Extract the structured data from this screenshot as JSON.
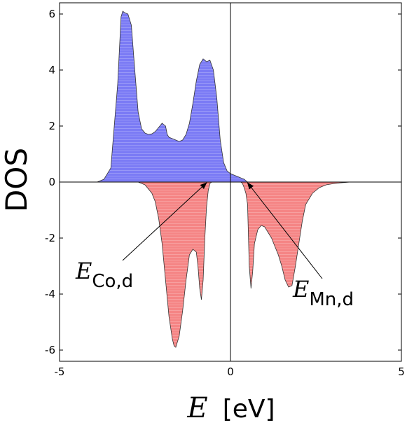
{
  "chart_data": {
    "type": "area",
    "xlabel_symbol": "E",
    "xlabel_unit": "[eV]",
    "ylabel": "DOS",
    "xlim": [
      -5,
      5
    ],
    "ylim": [
      -6.4,
      6.4
    ],
    "xticks": [
      -5,
      0,
      5
    ],
    "yticks": [
      -6,
      -4,
      -2,
      0,
      2,
      4,
      6
    ],
    "grid": false,
    "series": [
      {
        "fill_color": "#7b7bf5",
        "x": [
          -3.9,
          -3.7,
          -3.5,
          -3.3,
          -3.2,
          -3.15,
          -3.1,
          -3.0,
          -2.9,
          -2.8,
          -2.7,
          -2.6,
          -2.5,
          -2.4,
          -2.3,
          -2.2,
          -2.1,
          -2.0,
          -1.95,
          -1.9,
          -1.85,
          -1.8,
          -1.7,
          -1.6,
          -1.5,
          -1.4,
          -1.3,
          -1.2,
          -1.1,
          -1.0,
          -0.9,
          -0.8,
          -0.7,
          -0.6,
          -0.5,
          -0.4,
          -0.3,
          -0.2,
          -0.1,
          0.0,
          0.1,
          0.2,
          0.3,
          0.4,
          0.5
        ],
        "y": [
          0,
          0.1,
          0.5,
          3.5,
          5.9,
          6.1,
          6.05,
          6.0,
          5.6,
          4.0,
          2.5,
          1.9,
          1.75,
          1.7,
          1.72,
          1.8,
          1.95,
          2.1,
          2.05,
          2.0,
          1.7,
          1.6,
          1.55,
          1.5,
          1.45,
          1.5,
          1.7,
          2.1,
          2.8,
          3.6,
          4.2,
          4.4,
          4.3,
          4.35,
          4.0,
          3.0,
          1.5,
          0.7,
          0.4,
          0.3,
          0.25,
          0.2,
          0.15,
          0.1,
          0.0
        ]
      },
      {
        "fill_color": "#f58585",
        "x": [
          -2.7,
          -2.5,
          -2.3,
          -2.2,
          -2.1,
          -2.0,
          -1.9,
          -1.8,
          -1.7,
          -1.65,
          -1.6,
          -1.5,
          -1.4,
          -1.3,
          -1.2,
          -1.1,
          -1.0,
          -0.95,
          -0.9,
          -0.85,
          -0.8,
          -0.75,
          -0.7,
          -0.65,
          -0.6,
          -0.55,
          0.3,
          0.35,
          0.4,
          0.45,
          0.5,
          0.55,
          0.6,
          0.65,
          0.7,
          0.8,
          0.9,
          1.0,
          1.1,
          1.2,
          1.3,
          1.4,
          1.5,
          1.6,
          1.7,
          1.8,
          1.9,
          2.0,
          2.1,
          2.2,
          2.4,
          2.6,
          2.8,
          3.0,
          3.2,
          3.5
        ],
        "y": [
          0,
          -0.1,
          -0.4,
          -0.7,
          -1.3,
          -2.2,
          -3.5,
          -4.8,
          -5.6,
          -5.85,
          -5.9,
          -5.5,
          -4.6,
          -3.5,
          -2.6,
          -2.4,
          -2.5,
          -3.0,
          -3.8,
          -4.2,
          -3.5,
          -2.0,
          -0.9,
          -0.3,
          -0.05,
          0,
          0,
          -0.05,
          -0.2,
          -0.4,
          -0.8,
          -3.0,
          -3.8,
          -3.2,
          -2.2,
          -1.7,
          -1.55,
          -1.6,
          -1.8,
          -2.0,
          -2.3,
          -2.6,
          -3.0,
          -3.5,
          -3.75,
          -3.7,
          -3.0,
          -2.2,
          -1.4,
          -0.8,
          -0.4,
          -0.2,
          -0.1,
          -0.06,
          -0.03,
          0
        ]
      }
    ],
    "annotations": [
      {
        "symbol": "E",
        "subscript": "Co,d",
        "target": [
          -0.7,
          0
        ]
      },
      {
        "symbol": "E",
        "subscript": "Mn,d",
        "target": [
          0.5,
          0
        ]
      }
    ]
  }
}
